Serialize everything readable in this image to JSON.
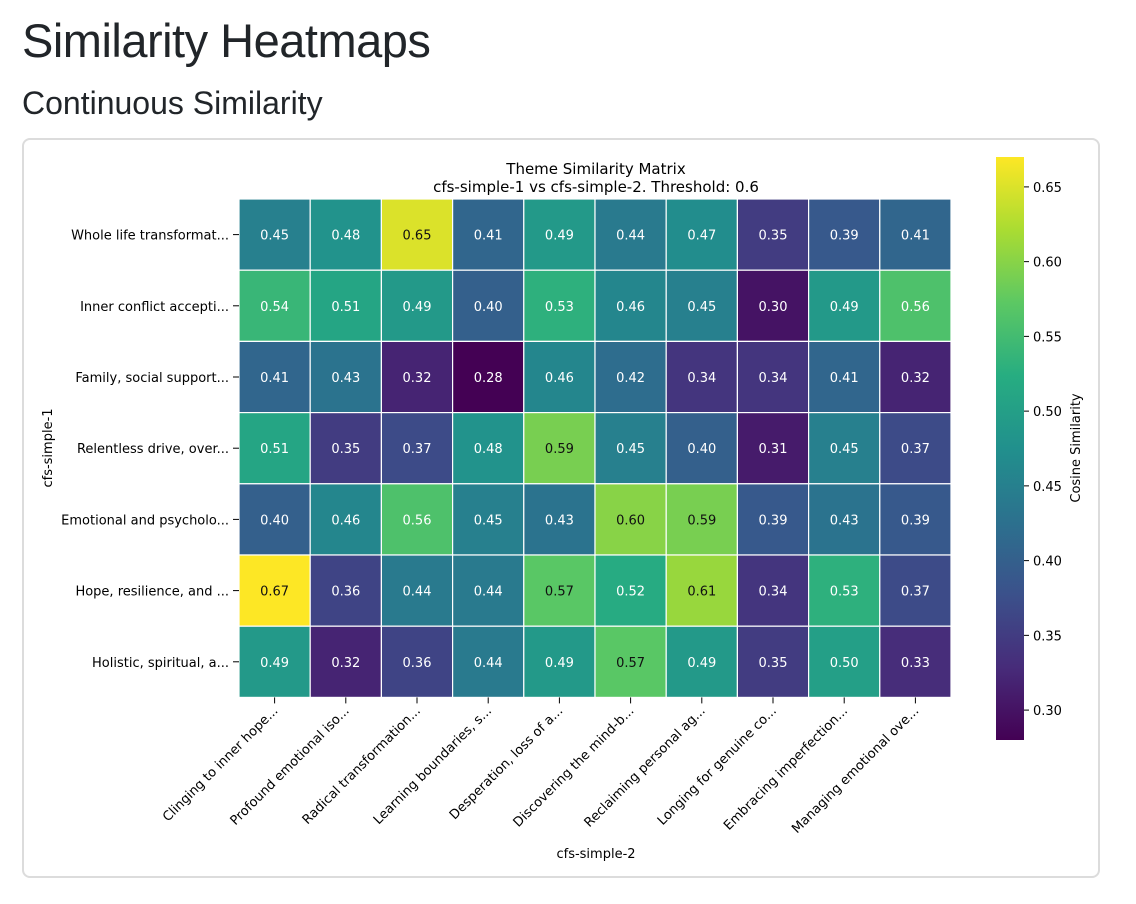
{
  "page": {
    "title": "Similarity Heatmaps",
    "section_title": "Continuous Similarity"
  },
  "chart_data": {
    "type": "heatmap",
    "title": "Theme Similarity Matrix",
    "subtitle": "cfs-simple-1 vs cfs-simple-2. Threshold: 0.6",
    "xlabel": "cfs-simple-2",
    "ylabel": "cfs-simple-1",
    "colorbar_label": "Cosine Similarity",
    "colormap": "viridis",
    "vmin": 0.28,
    "vmax": 0.67,
    "colorbar_ticks": [
      "0.30",
      "0.35",
      "0.40",
      "0.45",
      "0.50",
      "0.55",
      "0.60",
      "0.65"
    ],
    "rows": [
      "Whole life transformat...",
      "Inner conflict accepti...",
      "Family, social support...",
      "Relentless drive, over...",
      "Emotional and psycholo...",
      "Hope, resilience, and ...",
      "Holistic, spiritual, a..."
    ],
    "columns": [
      "Clinging to inner hope...",
      "Profound emotional iso...",
      "Radical transformation...",
      "Learning boundaries, s...",
      "Desperation, loss of a...",
      "Discovering the mind-b...",
      "Reclaiming personal ag...",
      "Longing for genuine co...",
      "Embracing imperfection...",
      "Managing emotional ove..."
    ],
    "values": [
      [
        0.45,
        0.48,
        0.65,
        0.41,
        0.49,
        0.44,
        0.47,
        0.35,
        0.39,
        0.41
      ],
      [
        0.54,
        0.51,
        0.49,
        0.4,
        0.53,
        0.46,
        0.45,
        0.3,
        0.49,
        0.56
      ],
      [
        0.41,
        0.43,
        0.32,
        0.28,
        0.46,
        0.42,
        0.34,
        0.34,
        0.41,
        0.32
      ],
      [
        0.51,
        0.35,
        0.37,
        0.48,
        0.59,
        0.45,
        0.4,
        0.31,
        0.45,
        0.37
      ],
      [
        0.4,
        0.46,
        0.56,
        0.45,
        0.43,
        0.6,
        0.59,
        0.39,
        0.43,
        0.39
      ],
      [
        0.67,
        0.36,
        0.44,
        0.44,
        0.57,
        0.52,
        0.61,
        0.34,
        0.53,
        0.37
      ],
      [
        0.49,
        0.32,
        0.36,
        0.44,
        0.49,
        0.57,
        0.49,
        0.35,
        0.5,
        0.33
      ]
    ]
  }
}
